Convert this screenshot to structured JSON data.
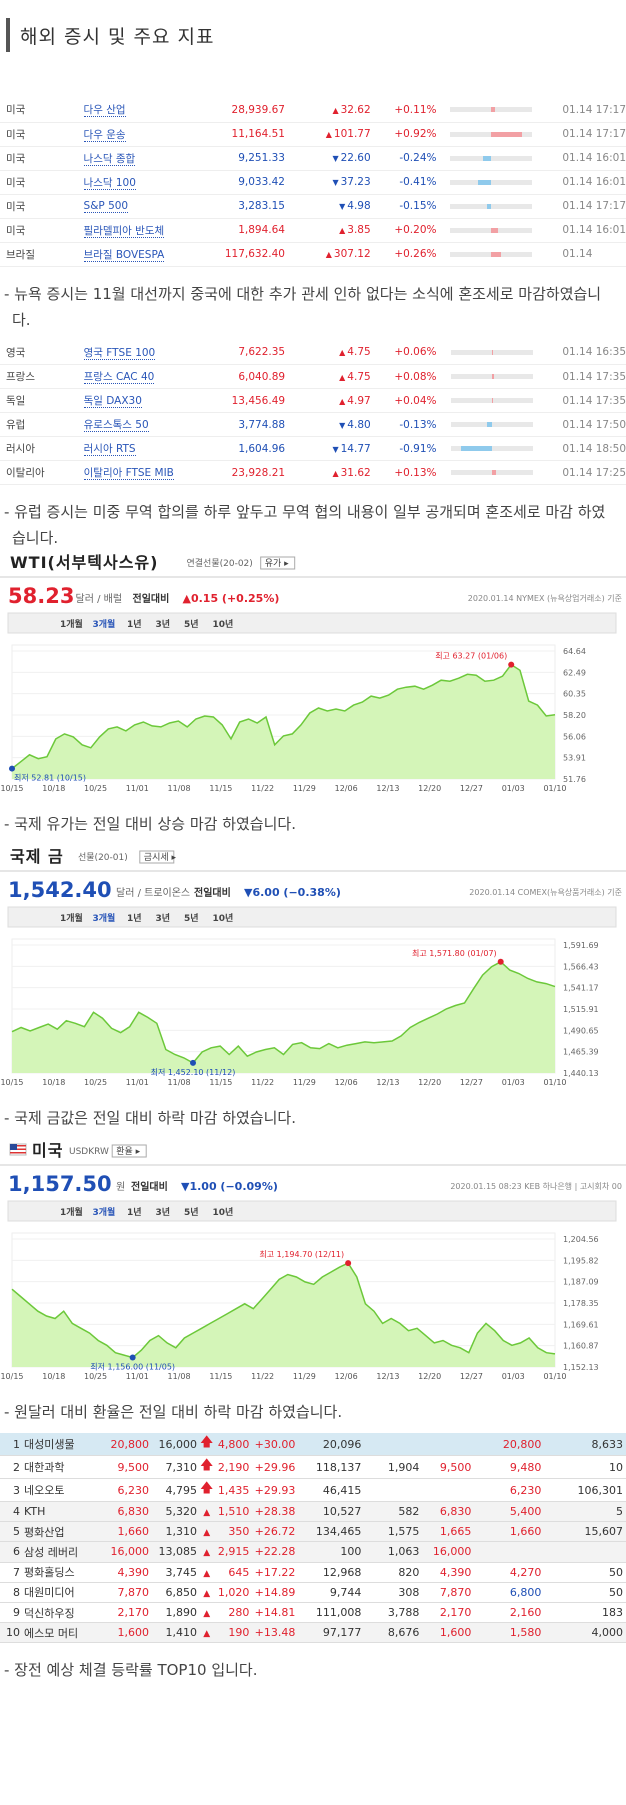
{
  "section_title": "해외 증시 및 주요 지표",
  "us_table": [
    {
      "country": "미국",
      "name": "다우 산업",
      "price": "28,939.67",
      "change": "32.62",
      "dir": "up",
      "rate": "+0.11%",
      "bar": 0.04,
      "time": "01.14 17:17"
    },
    {
      "country": "미국",
      "name": "다우 운송",
      "price": "11,164.51",
      "change": "101.77",
      "dir": "up",
      "rate": "+0.92%",
      "bar": 0.37,
      "time": "01.14 17:17"
    },
    {
      "country": "미국",
      "name": "나스닥 종합",
      "price": "9,251.33",
      "change": "22.60",
      "dir": "dn",
      "rate": "-0.24%",
      "bar": 0.1,
      "time": "01.14 16:01"
    },
    {
      "country": "미국",
      "name": "나스닥 100",
      "price": "9,033.42",
      "change": "37.23",
      "dir": "dn",
      "rate": "-0.41%",
      "bar": 0.17,
      "time": "01.14 16:01"
    },
    {
      "country": "미국",
      "name": "S&P 500",
      "price": "3,283.15",
      "change": "4.98",
      "dir": "dn",
      "rate": "-0.15%",
      "bar": 0.06,
      "time": "01.14 17:17"
    },
    {
      "country": "미국",
      "name": "필라델피아 반도체",
      "price": "1,894.64",
      "change": "3.85",
      "dir": "up",
      "rate": "+0.20%",
      "bar": 0.08,
      "time": "01.14 16:01"
    },
    {
      "country": "브라질",
      "name": "브라질 BOVESPA",
      "price": "117,632.40",
      "change": "307.12",
      "dir": "up",
      "rate": "+0.26%",
      "bar": 0.11,
      "time": "01.14"
    }
  ],
  "note1": "- 뉴욕 증시는 11월 대선까지 중국에 대한 추가 관세 인하 없다는 소식에 혼조세로 마감하였습니다.",
  "eu_table": [
    {
      "country": "영국",
      "name": "영국 FTSE 100",
      "price": "7,622.35",
      "change": "4.75",
      "dir": "up",
      "rate": "+0.06%",
      "bar": 0.02,
      "time": "01.14 16:35"
    },
    {
      "country": "프랑스",
      "name": "프랑스 CAC 40",
      "price": "6,040.89",
      "change": "4.75",
      "dir": "up",
      "rate": "+0.08%",
      "bar": 0.03,
      "time": "01.14 17:35"
    },
    {
      "country": "독일",
      "name": "독일 DAX30",
      "price": "13,456.49",
      "change": "4.97",
      "dir": "up",
      "rate": "+0.04%",
      "bar": 0.02,
      "time": "01.14 17:35"
    },
    {
      "country": "유럽",
      "name": "유로스톡스 50",
      "price": "3,774.88",
      "change": "4.80",
      "dir": "dn",
      "rate": "-0.13%",
      "bar": 0.05,
      "time": "01.14 17:50"
    },
    {
      "country": "러시아",
      "name": "러시아 RTS",
      "price": "1,604.96",
      "change": "14.77",
      "dir": "dn",
      "rate": "-0.91%",
      "bar": 0.37,
      "time": "01.14 18:50"
    },
    {
      "country": "이탈리아",
      "name": "이탈리아 FTSE MIB",
      "price": "23,928.21",
      "change": "31.62",
      "dir": "up",
      "rate": "+0.13%",
      "bar": 0.05,
      "time": "01.14 17:25"
    }
  ],
  "note2": "- 유럽 증시는 미중 무역 합의를 하루 앞두고 무역 협의 내용이 일부 공개되며 혼조세로 마감 하였습니다.",
  "periods": [
    "1개월",
    "3개월",
    "1년",
    "3년",
    "5년",
    "10년"
  ],
  "x_ticks": [
    "10/15",
    "10/18",
    "10/25",
    "11/01",
    "11/08",
    "11/15",
    "11/22",
    "11/29",
    "12/06",
    "12/13",
    "12/20",
    "12/27",
    "01/03",
    "01/10"
  ],
  "wti": {
    "title": "WTI(서부텍사스유)",
    "sub": "연결선물(20-02)",
    "btn": "유가",
    "price": "58.23",
    "unit": "달러 / 배럴",
    "vs_label": "전일대비",
    "change": "▲0.15 (+0.25%)",
    "source": "2020.01.14  NYMEX (뉴욕상업거래소) 기준",
    "max_label": "최고 63.27 (01/06)",
    "min_label": "최저 52.81 (10/15)",
    "y_ticks": [
      "64.64",
      "62.49",
      "60.35",
      "58.20",
      "56.06",
      "53.91",
      "51.76"
    ]
  },
  "gold": {
    "title": "국제 금",
    "sub": "선물(20-01)",
    "btn": "금시세",
    "price": "1,542.40",
    "unit": "달러 / 트로이온스",
    "vs_label": "전일대비",
    "change": "▼6.00 (−0.38%)",
    "source": "2020.01.14  COMEX(뉴욕상품거래소) 기준",
    "max_label": "최고 1,571.80 (01/07)",
    "min_label": "최저 1,452.10 (11/12)",
    "y_ticks": [
      "1,591.69",
      "1,566.43",
      "1,541.17",
      "1,515.91",
      "1,490.65",
      "1,465.39",
      "1,440.13"
    ]
  },
  "usd": {
    "title": "미국",
    "sub": "USDKRW",
    "btn": "환율",
    "price": "1,157.50",
    "unit": "원",
    "vs_label": "전일대비",
    "change": "▼1.00 (−0.09%)",
    "source": "2020.01.15 08:23  KEB 하나은행  |  고시회차 00",
    "max_label": "최고 1,194.70 (12/11)",
    "min_label": "최저 1,156.00 (11/05)",
    "y_ticks": [
      "1,204.56",
      "1,195.82",
      "1,187.09",
      "1,178.35",
      "1,169.61",
      "1,160.87",
      "1,152.13"
    ]
  },
  "chart_data": [
    {
      "type": "area",
      "title": "WTI(서부텍사스유)",
      "ylim": [
        51.76,
        64.64
      ],
      "series": [
        {
          "values": [
            52.81,
            53.5,
            54.2,
            53.8,
            54.0,
            55.8,
            56.3,
            56.0,
            55.2,
            54.9,
            56.0,
            56.8,
            57.0,
            56.6,
            57.2,
            57.5,
            57.1,
            57.0,
            57.4,
            57.6,
            57.0,
            57.8,
            58.1,
            58.0,
            57.2,
            55.8,
            57.5,
            57.8,
            57.4,
            58.0,
            55.2,
            56.1,
            56.3,
            57.2,
            58.4,
            58.9,
            58.6,
            58.8,
            58.6,
            59.2,
            59.5,
            60.1,
            59.9,
            60.2,
            60.8,
            61.0,
            61.1,
            60.8,
            61.2,
            61.7,
            61.6,
            61.9,
            62.3,
            62.2,
            61.6,
            61.7,
            62.1,
            63.27,
            62.7,
            59.6,
            59.2,
            58.1,
            58.23
          ]
        }
      ]
    },
    {
      "type": "area",
      "title": "국제 금",
      "ylim": [
        1440.13,
        1591.69
      ],
      "series": [
        {
          "values": [
            1489,
            1494,
            1490,
            1494,
            1498,
            1492,
            1502,
            1499,
            1495,
            1512,
            1505,
            1493,
            1488,
            1495,
            1512,
            1506,
            1499,
            1468,
            1462,
            1458,
            1452.1,
            1465,
            1470,
            1472,
            1462,
            1472,
            1460,
            1465,
            1468,
            1470,
            1462,
            1474,
            1476,
            1470,
            1469,
            1475,
            1470,
            1473,
            1475,
            1477,
            1476,
            1477,
            1478,
            1484,
            1494,
            1500,
            1505,
            1510,
            1516,
            1520,
            1523,
            1540,
            1556,
            1566,
            1571.8,
            1562,
            1558,
            1552,
            1548,
            1546,
            1542.4
          ]
        }
      ]
    },
    {
      "type": "area",
      "title": "미국 USDKRW",
      "ylim": [
        1152.13,
        1204.56
      ],
      "series": [
        {
          "values": [
            1184,
            1181,
            1178,
            1175,
            1173,
            1172,
            1175,
            1170,
            1168,
            1166,
            1163,
            1161,
            1158,
            1157,
            1156,
            1159,
            1163,
            1165,
            1162,
            1160,
            1164,
            1166,
            1168,
            1170,
            1172,
            1174,
            1176,
            1178,
            1176,
            1180,
            1184,
            1188,
            1190,
            1189,
            1187,
            1186,
            1189,
            1191,
            1193,
            1194.7,
            1189,
            1178,
            1175,
            1170,
            1172,
            1170,
            1167,
            1168,
            1165,
            1162,
            1163,
            1161,
            1160,
            1158,
            1166,
            1170,
            1167,
            1163,
            1161,
            1162,
            1164,
            1160,
            1158,
            1157.5
          ]
        }
      ]
    }
  ],
  "note3": "- 국제 유가는 전일 대비 상승 마감 하였습니다.",
  "note4": "- 국제 금값은 전일 대비 하락 마감 하였습니다.",
  "note5": "- 원달러 대비 환율은 전일 대비 하락 마감 하였습니다.",
  "top10": [
    {
      "rank": "1",
      "name": "대성미생물",
      "a": "20,800",
      "b": "16,000",
      "arrow": "bold",
      "c": "4,800",
      "d": "+30.00",
      "e": "20,096",
      "f": "",
      "g": "",
      "h": "20,800",
      "i": "8,633"
    },
    {
      "rank": "2",
      "name": "대한과학",
      "a": "9,500",
      "b": "7,310",
      "arrow": "bold",
      "c": "2,190",
      "d": "+29.96",
      "e": "118,137",
      "f": "1,904",
      "g": "9,500",
      "h": "9,480",
      "i": "10"
    },
    {
      "rank": "3",
      "name": "네오오토",
      "a": "6,230",
      "b": "4,795",
      "arrow": "bold",
      "c": "1,435",
      "d": "+29.93",
      "e": "46,415",
      "f": "",
      "g": "",
      "h": "6,230",
      "i": "106,301"
    },
    {
      "rank": "4",
      "name": "KTH",
      "a": "6,830",
      "b": "5,320",
      "arrow": "tri",
      "c": "1,510",
      "d": "+28.38",
      "e": "10,527",
      "f": "582",
      "g": "6,830",
      "h": "5,400",
      "i": "5"
    },
    {
      "rank": "5",
      "name": "평화산업",
      "a": "1,660",
      "b": "1,310",
      "arrow": "tri",
      "c": "350",
      "d": "+26.72",
      "e": "134,465",
      "f": "1,575",
      "g": "1,665",
      "h": "1,660",
      "i": "15,607"
    },
    {
      "rank": "6",
      "name": "삼성 레버리",
      "a": "16,000",
      "b": "13,085",
      "arrow": "tri",
      "c": "2,915",
      "d": "+22.28",
      "e": "100",
      "f": "1,063",
      "g": "16,000",
      "h": "",
      "i": ""
    },
    {
      "rank": "7",
      "name": "평화홀딩스",
      "a": "4,390",
      "b": "3,745",
      "arrow": "tri",
      "c": "645",
      "d": "+17.22",
      "e": "12,968",
      "f": "820",
      "g": "4,390",
      "h": "4,270",
      "i": "50"
    },
    {
      "rank": "8",
      "name": "대원미디어",
      "a": "7,870",
      "b": "6,850",
      "arrow": "tri",
      "c": "1,020",
      "d": "+14.89",
      "e": "9,744",
      "f": "308",
      "g": "7,870",
      "h": "6,800",
      "i": "50"
    },
    {
      "rank": "9",
      "name": "덕신하우징",
      "a": "2,170",
      "b": "1,890",
      "arrow": "tri",
      "c": "280",
      "d": "+14.81",
      "e": "111,008",
      "f": "3,788",
      "g": "2,170",
      "h": "2,160",
      "i": "183"
    },
    {
      "rank": "10",
      "name": "에스모 머티",
      "a": "1,600",
      "b": "1,410",
      "arrow": "tri",
      "c": "190",
      "d": "+13.48",
      "e": "97,177",
      "f": "8,676",
      "g": "1,600",
      "h": "1,580",
      "i": "4,000"
    }
  ],
  "note6": "- 장전 예상 체결 등락률 TOP10 입니다.",
  "colors": {
    "up": "#e0212e",
    "down": "#1f4fb5",
    "area_fill": "#c8f0a8",
    "line": "#6cc83a",
    "accent_blue": "#2a56b8"
  }
}
